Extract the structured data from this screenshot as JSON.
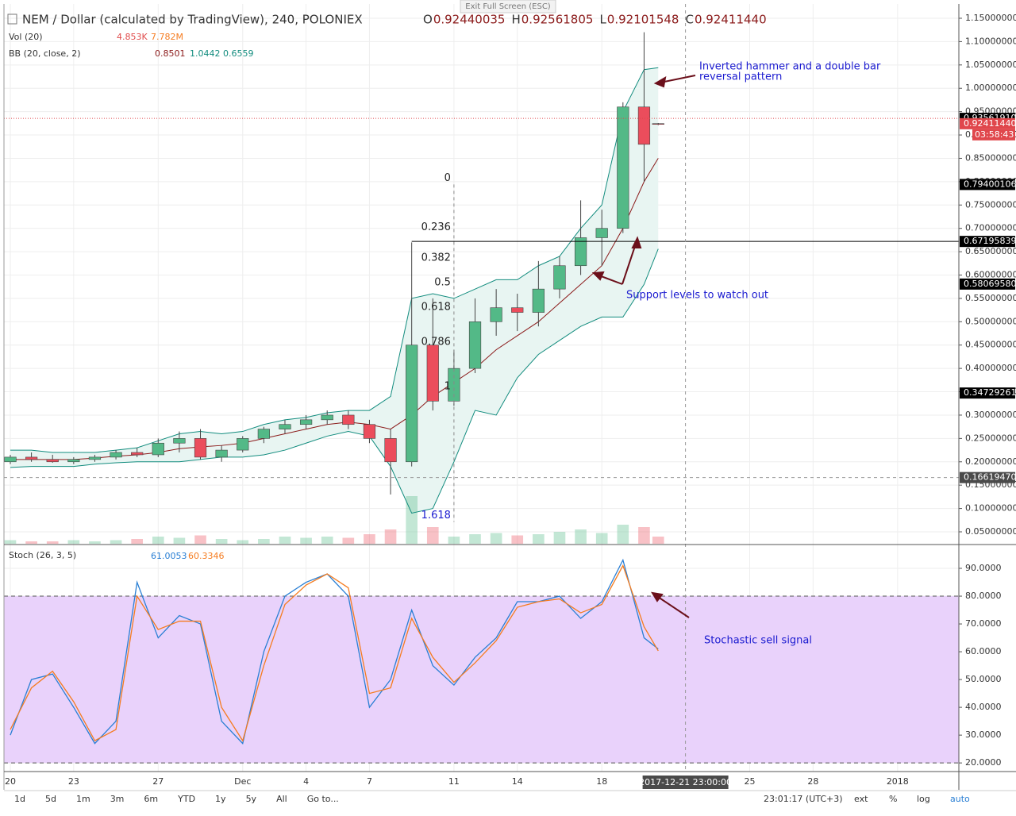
{
  "header": {
    "symbol": "NEM / Dollar (calculated by TradingView), 240, POLONIEX",
    "ohlc": [
      {
        "label": "O",
        "value": "0.92440035"
      },
      {
        "label": "H",
        "value": "0.92561805"
      },
      {
        "label": "L",
        "value": "0.92101548"
      },
      {
        "label": "C",
        "value": "0.92411440"
      }
    ]
  },
  "exit_button": "Exit Full Screen (ESC)",
  "legend": {
    "volume": {
      "title": "Vol (20)",
      "values": [
        "4.853K",
        "7.782M"
      ]
    },
    "bb": {
      "title": "BB (20, close, 2)",
      "values": [
        "0.8501",
        "1.0442",
        "0.6559"
      ]
    },
    "stoch": {
      "title": "Stoch (26, 3, 5)",
      "values": [
        "61.0053",
        "60.3346"
      ]
    }
  },
  "annotations": [
    {
      "lines": [
        "Inverted hammer and a double bar",
        "reversal pattern"
      ]
    },
    {
      "lines": [
        "Support levels to watch out"
      ]
    },
    {
      "lines": [
        "Stochastic sell signal"
      ]
    }
  ],
  "chart_data": [
    {
      "type": "candlestick",
      "x": [
        0,
        1,
        2,
        3,
        4,
        5,
        6,
        7,
        8,
        9,
        10,
        11,
        12,
        13,
        14,
        15,
        16,
        17,
        18,
        19,
        20,
        21,
        22,
        23,
        24,
        25,
        26,
        27,
        28,
        29,
        30,
        30.67
      ],
      "open": [
        0.2,
        0.21,
        0.205,
        0.2,
        0.205,
        0.21,
        0.22,
        0.215,
        0.24,
        0.25,
        0.21,
        0.225,
        0.25,
        0.27,
        0.28,
        0.29,
        0.3,
        0.28,
        0.25,
        0.2,
        0.45,
        0.33,
        0.4,
        0.5,
        0.53,
        0.52,
        0.57,
        0.62,
        0.68,
        0.7,
        0.96,
        0.92440035
      ],
      "high": [
        0.215,
        0.22,
        0.215,
        0.21,
        0.215,
        0.225,
        0.23,
        0.25,
        0.265,
        0.27,
        0.235,
        0.255,
        0.275,
        0.29,
        0.3,
        0.31,
        0.31,
        0.29,
        0.27,
        0.67,
        0.55,
        0.44,
        0.55,
        0.57,
        0.56,
        0.63,
        0.64,
        0.76,
        0.74,
        0.97,
        1.12,
        0.92561805
      ],
      "low": [
        0.195,
        0.2,
        0.198,
        0.195,
        0.2,
        0.205,
        0.21,
        0.21,
        0.22,
        0.205,
        0.2,
        0.22,
        0.24,
        0.26,
        0.27,
        0.28,
        0.27,
        0.24,
        0.13,
        0.19,
        0.31,
        0.32,
        0.39,
        0.47,
        0.48,
        0.49,
        0.55,
        0.6,
        0.62,
        0.69,
        0.8,
        0.92101548
      ],
      "close": [
        0.21,
        0.205,
        0.2,
        0.205,
        0.21,
        0.22,
        0.215,
        0.24,
        0.25,
        0.21,
        0.225,
        0.25,
        0.27,
        0.28,
        0.29,
        0.3,
        0.28,
        0.25,
        0.2,
        0.45,
        0.33,
        0.4,
        0.5,
        0.53,
        0.52,
        0.57,
        0.62,
        0.68,
        0.7,
        0.96,
        0.88,
        0.9241144
      ],
      "volume": [
        3,
        2,
        2,
        3,
        2,
        3,
        4,
        6,
        5,
        7,
        4,
        3,
        4,
        6,
        5,
        6,
        5,
        8,
        12,
        40,
        14,
        6,
        8,
        9,
        7,
        8,
        10,
        12,
        9,
        16,
        14,
        6
      ],
      "up_color": "#53b987",
      "down_color": "#eb4d5c",
      "bb_upper": [
        0.225,
        0.225,
        0.22,
        0.22,
        0.22,
        0.225,
        0.23,
        0.245,
        0.26,
        0.265,
        0.26,
        0.265,
        0.28,
        0.29,
        0.295,
        0.305,
        0.31,
        0.31,
        0.34,
        0.55,
        0.56,
        0.55,
        0.57,
        0.59,
        0.59,
        0.62,
        0.64,
        0.7,
        0.75,
        0.95,
        1.04,
        1.0442
      ],
      "bb_basis": [
        0.205,
        0.205,
        0.205,
        0.205,
        0.208,
        0.212,
        0.215,
        0.22,
        0.228,
        0.232,
        0.235,
        0.24,
        0.25,
        0.26,
        0.27,
        0.28,
        0.285,
        0.28,
        0.27,
        0.3,
        0.34,
        0.37,
        0.4,
        0.44,
        0.47,
        0.5,
        0.54,
        0.58,
        0.62,
        0.7,
        0.8,
        0.8501
      ],
      "bb_lower": [
        0.188,
        0.19,
        0.19,
        0.19,
        0.195,
        0.198,
        0.2,
        0.2,
        0.2,
        0.205,
        0.21,
        0.21,
        0.215,
        0.225,
        0.24,
        0.255,
        0.265,
        0.255,
        0.19,
        0.09,
        0.1,
        0.2,
        0.31,
        0.3,
        0.38,
        0.43,
        0.46,
        0.49,
        0.51,
        0.51,
        0.58,
        0.6559
      ],
      "bb_color": "#128c7e",
      "basis_color": "#8b1a1a",
      "band_fill": "#e8f5f2",
      "xlim": [
        -0.3,
        44.9
      ],
      "xticks": [
        {
          "value": 0,
          "label": "20"
        },
        {
          "value": 3,
          "label": "23"
        },
        {
          "value": 7,
          "label": "27"
        },
        {
          "value": 11,
          "label": "Dec"
        },
        {
          "value": 14,
          "label": "4"
        },
        {
          "value": 17,
          "label": "7"
        },
        {
          "value": 21,
          "label": "11"
        },
        {
          "value": 24,
          "label": "14"
        },
        {
          "value": 28,
          "label": "18"
        },
        {
          "value": 35,
          "label": "25"
        },
        {
          "value": 38,
          "label": "28"
        },
        {
          "value": 42,
          "label": "2018"
        }
      ],
      "crosshair": {
        "x": {
          "value": 31.96,
          "label": "2017-12-21 23:00:00"
        },
        "y": {
          "value": 0.1661947,
          "label": "0.16619470"
        }
      },
      "ylim": [
        0.0245,
        1.1806
      ],
      "yticks": [
        {
          "value": 0.05,
          "label": "0.05000000"
        },
        {
          "value": 0.1,
          "label": "0.10000000"
        },
        {
          "value": 0.15,
          "label": "0.15000000"
        },
        {
          "value": 0.2,
          "label": "0.20000000"
        },
        {
          "value": 0.25,
          "label": "0.25000000"
        },
        {
          "value": 0.3,
          "label": "0.30000000"
        },
        {
          "value": 0.35,
          "label": "0.35000000"
        },
        {
          "value": 0.4,
          "label": "0.40000000"
        },
        {
          "value": 0.45,
          "label": "0.45000000"
        },
        {
          "value": 0.5,
          "label": "0.50000000"
        },
        {
          "value": 0.55,
          "label": "0.55000000"
        },
        {
          "value": 0.6,
          "label": "0.60000000"
        },
        {
          "value": 0.65,
          "label": "0.65000000"
        },
        {
          "value": 0.7,
          "label": "0.70000000"
        },
        {
          "value": 0.75,
          "label": "0.75000000"
        },
        {
          "value": 0.8,
          "label": "0.80000000"
        },
        {
          "value": 0.85,
          "label": "0.85000000"
        },
        {
          "value": 0.9,
          "label": "0.90000000"
        },
        {
          "value": 0.95,
          "label": "0.95000000"
        },
        {
          "value": 1,
          "label": "1.00000000"
        },
        {
          "value": 1.05,
          "label": "1.05000000"
        },
        {
          "value": 1.1,
          "label": "1.10000000"
        },
        {
          "value": 1.15,
          "label": "1.15000000"
        }
      ],
      "price_labels": [
        {
          "value": 0.9356191,
          "label": "0.93561910",
          "color": "#000000",
          "line": "dotted"
        },
        {
          "value": 0.9241144,
          "label": "0.92411440",
          "color": "#e0474c"
        },
        {
          "value": 0.79400106,
          "label": "0.79400106",
          "color": "#000000"
        },
        {
          "value": 0.67195839,
          "label": "0.67195839",
          "color": "#000000",
          "line": "solid"
        },
        {
          "value": 0.5806958,
          "label": "0.58069580",
          "color": "#000000"
        },
        {
          "value": 0.34729261,
          "label": "0.34729261",
          "color": "#000000"
        }
      ],
      "countdown": "03:58:43",
      "fib": {
        "levels": [
          0,
          0.236,
          0.382,
          0.5,
          0.618,
          0.786,
          1,
          1.618
        ],
        "high": 0.79400106,
        "low": 0.34729261,
        "x": 21
      }
    },
    {
      "type": "line",
      "x": [
        0,
        1,
        2,
        3,
        4,
        5,
        6,
        7,
        8,
        9,
        10,
        11,
        12,
        13,
        14,
        15,
        16,
        17,
        18,
        19,
        20,
        21,
        22,
        23,
        24,
        25,
        26,
        27,
        28,
        29,
        30,
        30.67
      ],
      "series": [
        {
          "name": "K",
          "color": "#2a7fd4",
          "values": [
            30,
            50,
            52,
            40,
            27,
            35,
            85,
            65,
            73,
            70,
            35,
            27,
            60,
            80,
            85,
            88,
            80,
            40,
            50,
            75,
            55,
            48,
            58,
            65,
            78,
            78,
            80,
            72,
            78,
            93,
            65,
            61.0053
          ]
        },
        {
          "name": "D",
          "color": "#f57c20",
          "values": [
            32,
            47,
            53,
            42,
            28,
            32,
            80,
            68,
            71,
            71,
            40,
            28,
            55,
            77,
            84,
            88,
            83,
            45,
            47,
            72,
            58,
            49,
            56,
            64,
            76,
            78,
            79,
            74,
            77,
            91,
            69,
            60.3346
          ]
        }
      ],
      "overbought": 80,
      "oversold": 20,
      "ylim": [
        16.9,
        98
      ],
      "yticks": [
        {
          "value": 20,
          "label": "20.0000"
        },
        {
          "value": 30,
          "label": "30.0000"
        },
        {
          "value": 40,
          "label": "40.0000"
        },
        {
          "value": 50,
          "label": "50.0000"
        },
        {
          "value": 60,
          "label": "60.0000"
        },
        {
          "value": 70,
          "label": "70.0000"
        },
        {
          "value": 80,
          "label": "80.0000"
        },
        {
          "value": 90,
          "label": "90.0000"
        }
      ]
    }
  ],
  "toolbar": {
    "ranges": [
      "1d",
      "5d",
      "1m",
      "3m",
      "6m",
      "YTD",
      "1y",
      "5y",
      "All",
      "Go to..."
    ],
    "clock": "23:01:17 (UTC+3)",
    "options": [
      "ext",
      "%",
      "log",
      "auto"
    ]
  }
}
